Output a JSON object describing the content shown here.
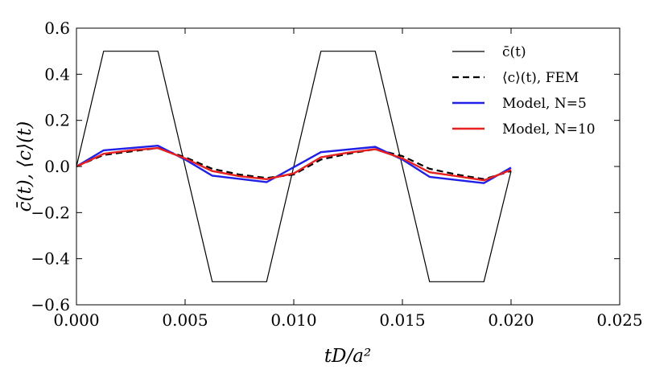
{
  "chart_data": {
    "type": "line",
    "xlabel": "tD/a²",
    "ylabel": "c̄(t), ⟨c⟩(t)",
    "xlim": [
      0.0,
      0.025
    ],
    "ylim": [
      -0.6,
      0.6
    ],
    "x_ticks": [
      "0.000",
      "0.005",
      "0.010",
      "0.015",
      "0.020",
      "0.025"
    ],
    "y_ticks": [
      "−0.6",
      "−0.4",
      "−0.2",
      "0.0",
      "0.2",
      "0.4",
      "0.6"
    ],
    "legend_position": "top-right",
    "series": [
      {
        "name": "c̄(t)",
        "color": "#000000",
        "style": "solid-thin",
        "x": [
          0.0,
          0.00125,
          0.00375,
          0.00625,
          0.00875,
          0.01125,
          0.01375,
          0.01625,
          0.01875,
          0.02
        ],
        "y": [
          0.0,
          0.5,
          0.5,
          -0.5,
          -0.5,
          0.5,
          0.5,
          -0.5,
          -0.5,
          -0.02
        ]
      },
      {
        "name": "⟨c⟩(t), FEM",
        "color": "#000000",
        "style": "dashed",
        "x": [
          0.0,
          0.00125,
          0.0025,
          0.00375,
          0.005,
          0.00625,
          0.0075,
          0.00875,
          0.01,
          0.01125,
          0.0125,
          0.01375,
          0.015,
          0.01625,
          0.0175,
          0.01875,
          0.02
        ],
        "y": [
          0.0,
          0.05,
          0.065,
          0.08,
          0.04,
          -0.01,
          -0.035,
          -0.05,
          -0.035,
          0.03,
          0.055,
          0.075,
          0.045,
          -0.01,
          -0.035,
          -0.055,
          -0.02
        ]
      },
      {
        "name": "Model, N=5",
        "color": "#1f1fe8",
        "style": "solid",
        "x": [
          0.0,
          0.00125,
          0.00375,
          0.005,
          0.00625,
          0.00875,
          0.01125,
          0.01375,
          0.015,
          0.01625,
          0.01875,
          0.02
        ],
        "y": [
          0.0,
          0.07,
          0.09,
          0.03,
          -0.04,
          -0.068,
          0.062,
          0.085,
          0.03,
          -0.045,
          -0.072,
          -0.005
        ]
      },
      {
        "name": "Model, N=10",
        "color": "#e81f1f",
        "style": "solid",
        "x": [
          0.0,
          0.00125,
          0.0025,
          0.00375,
          0.005,
          0.00625,
          0.0075,
          0.00875,
          0.01,
          0.01125,
          0.0125,
          0.01375,
          0.015,
          0.01625,
          0.0175,
          0.01875,
          0.02
        ],
        "y": [
          0.0,
          0.055,
          0.07,
          0.08,
          0.035,
          -0.02,
          -0.042,
          -0.055,
          -0.03,
          0.04,
          0.06,
          0.075,
          0.035,
          -0.025,
          -0.042,
          -0.06,
          -0.015
        ]
      }
    ]
  }
}
